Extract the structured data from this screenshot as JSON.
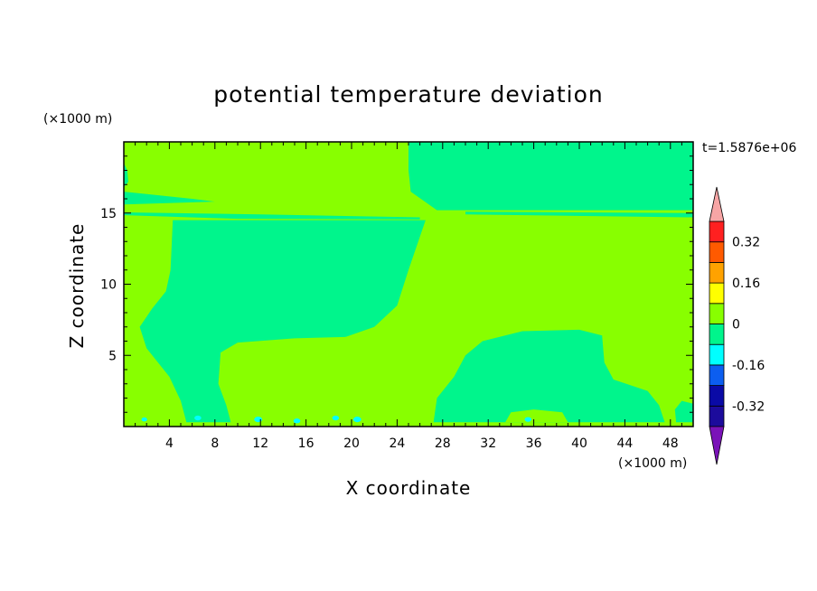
{
  "chart_data": {
    "type": "heatmap",
    "title": "potential temperature deviation",
    "xlabel": "X coordinate",
    "ylabel": "Z coordinate",
    "x_unit": "(×1000 m)",
    "y_unit": "(×1000 m)",
    "time_label": "t=1.5876e+06",
    "xlim": [
      0,
      50
    ],
    "ylim": [
      0,
      20
    ],
    "x_ticks": [
      4,
      8,
      12,
      16,
      20,
      24,
      28,
      32,
      36,
      40,
      44,
      48
    ],
    "y_ticks": [
      5,
      10,
      15
    ],
    "colorbar": {
      "levels": [
        -0.4,
        -0.32,
        -0.24,
        -0.16,
        -0.08,
        0,
        0.08,
        0.16,
        0.24,
        0.32,
        0.4
      ],
      "tick_labels": [
        "0.32",
        "0.16",
        "0",
        "-0.16",
        "-0.32"
      ],
      "tick_values": [
        0.32,
        0.16,
        0,
        -0.16,
        -0.32
      ],
      "colors": [
        "#1c0b9c",
        "#0a0aa6",
        "#0c5ef0",
        "#00ffff",
        "#00f58c",
        "#88ff00",
        "#ffff00",
        "#ffa200",
        "#ff5a00",
        "#ff2020"
      ],
      "under_color": "#7a13b8",
      "over_color": "#f7a5a5"
    },
    "fields": {
      "background_value": 0.04,
      "background_color": "#88ff00",
      "negative_regions_color": "#00f58c",
      "negative_value": -0.04,
      "strong_negative_color": "#00ffff",
      "strong_negative_value": -0.12,
      "regions": [
        {
          "name": "left-mid-cold-region",
          "polygon": [
            [
              4.3,
              14.5
            ],
            [
              26.5,
              14.5
            ],
            [
              25,
              11
            ],
            [
              24,
              8.5
            ],
            [
              22,
              7
            ],
            [
              19.5,
              6.3
            ],
            [
              15,
              6.2
            ],
            [
              10,
              5.9
            ],
            [
              8.5,
              5.2
            ],
            [
              8.3,
              3
            ],
            [
              9,
              1.5
            ],
            [
              9.4,
              0.3
            ],
            [
              7,
              0.3
            ],
            [
              5.5,
              0.3
            ],
            [
              5,
              1.8
            ],
            [
              4,
              3.5
            ],
            [
              2,
              5.5
            ],
            [
              1.4,
              7
            ],
            [
              2.5,
              8.3
            ],
            [
              3.7,
              9.5
            ],
            [
              4.1,
              11
            ]
          ]
        },
        {
          "name": "upper-right-cold-region",
          "polygon": [
            [
              25,
              20
            ],
            [
              50,
              20
            ],
            [
              50,
              15.2
            ],
            [
              27.5,
              15.2
            ],
            [
              25.2,
              16.5
            ],
            [
              25,
              18
            ]
          ]
        },
        {
          "name": "upper-left-cold-band",
          "polygon": [
            [
              0,
              16.5
            ],
            [
              6,
              16
            ],
            [
              8,
              15.8
            ],
            [
              0,
              15.6
            ]
          ]
        },
        {
          "name": "thin-band-15",
          "polygon": [
            [
              0,
              15.05
            ],
            [
              12,
              14.9
            ],
            [
              26,
              14.7
            ],
            [
              26,
              14.55
            ],
            [
              10,
              14.6
            ],
            [
              0,
              14.85
            ]
          ]
        },
        {
          "name": "thin-band-15-right",
          "polygon": [
            [
              30,
              15.1
            ],
            [
              50,
              15.0
            ],
            [
              50,
              14.7
            ],
            [
              30,
              14.9
            ]
          ]
        },
        {
          "name": "right-cold-streak",
          "polygon": [
            [
              44.5,
              16.2
            ],
            [
              50,
              16.1
            ],
            [
              50,
              15.9
            ],
            [
              44.5,
              16.0
            ]
          ]
        },
        {
          "name": "lower-right-cold-region",
          "polygon": [
            [
              27.2,
              0.3
            ],
            [
              27.5,
              2
            ],
            [
              29,
              3.5
            ],
            [
              30,
              5
            ],
            [
              31.5,
              6
            ],
            [
              35,
              6.7
            ],
            [
              40,
              6.8
            ],
            [
              42,
              6.4
            ],
            [
              42.2,
              4.5
            ],
            [
              43,
              3.3
            ],
            [
              46,
              2.5
            ],
            [
              47,
              1.5
            ],
            [
              47.5,
              0.3
            ]
          ]
        },
        {
          "name": "lower-right-inner-warm",
          "polygon": [
            [
              33.5,
              0.3
            ],
            [
              34,
              1
            ],
            [
              36,
              1.2
            ],
            [
              38.5,
              1
            ],
            [
              39,
              0.3
            ]
          ]
        },
        {
          "name": "far-right-cold",
          "polygon": [
            [
              48.5,
              0.3
            ],
            [
              48.4,
              1.2
            ],
            [
              49,
              1.8
            ],
            [
              50,
              1.6
            ],
            [
              50,
              0.3
            ]
          ]
        },
        {
          "name": "left-edge-cold",
          "polygon": [
            [
              0,
              18.5
            ],
            [
              0.3,
              18
            ],
            [
              0.4,
              17.2
            ],
            [
              0,
              16.8
            ]
          ]
        }
      ],
      "specks": [
        {
          "x": 1.8,
          "y": 0.5,
          "r": 0.25
        },
        {
          "x": 6.5,
          "y": 0.6,
          "r": 0.3
        },
        {
          "x": 11.8,
          "y": 0.5,
          "r": 0.35
        },
        {
          "x": 15.2,
          "y": 0.4,
          "r": 0.3
        },
        {
          "x": 18.6,
          "y": 0.6,
          "r": 0.3
        },
        {
          "x": 20.5,
          "y": 0.5,
          "r": 0.35
        },
        {
          "x": 35.5,
          "y": 0.5,
          "r": 0.3
        }
      ]
    }
  }
}
